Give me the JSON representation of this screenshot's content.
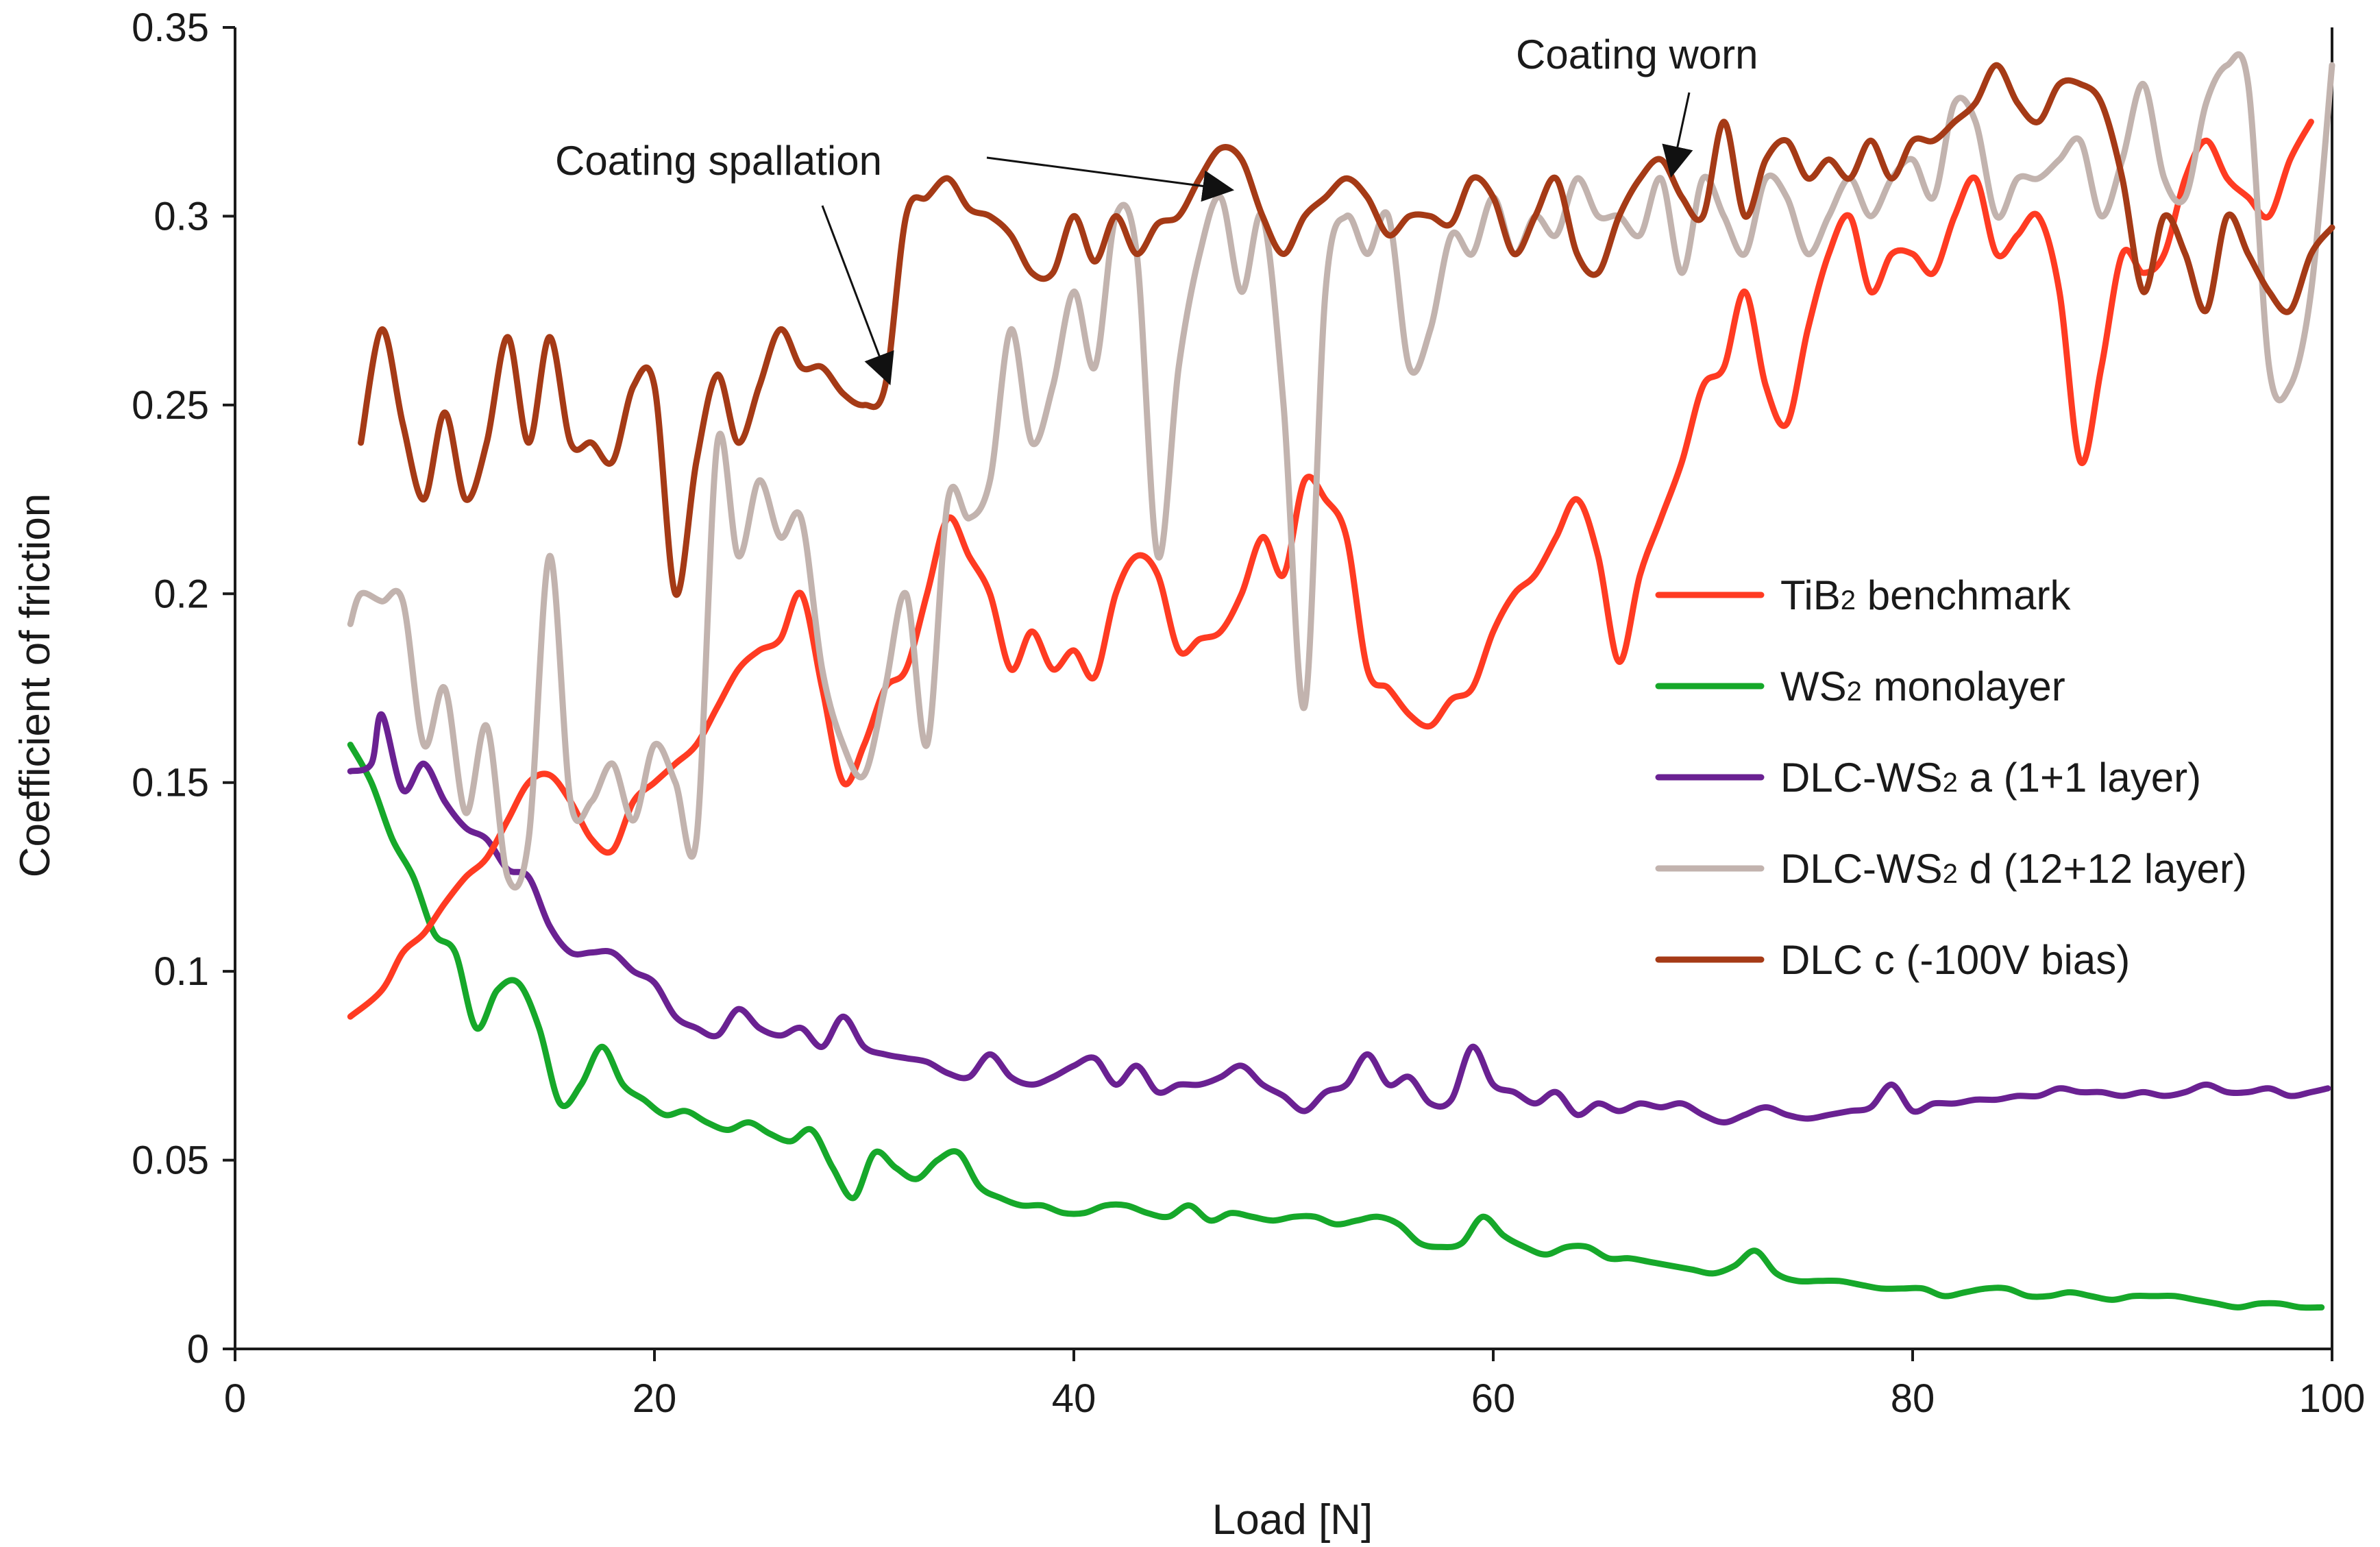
{
  "chart_data": {
    "type": "line",
    "title": "",
    "xlabel": "Load [N]",
    "ylabel": "Coefficient of friction",
    "xlim": [
      0,
      100
    ],
    "ylim": [
      0,
      0.35
    ],
    "xticks": [
      0,
      20,
      40,
      60,
      80,
      100
    ],
    "yticks": [
      0,
      0.05,
      0.1,
      0.15,
      0.2,
      0.25,
      0.3,
      0.35
    ],
    "xtick_labels": [
      "0",
      "20",
      "40",
      "60",
      "80",
      "100"
    ],
    "ytick_labels": [
      "0",
      "0.05",
      "0.1",
      "0.15",
      "0.2",
      "0.25",
      "0.3",
      "0.35"
    ],
    "grid": false,
    "legend_position": "right",
    "series": [
      {
        "name": "TiB2 benchmark",
        "label_main": "TiB",
        "label_sub": "2",
        "label_rest": " benchmark",
        "color": "#ff3b22",
        "x": [
          5.5,
          7,
          8,
          9,
          10,
          11,
          12,
          13,
          14,
          15,
          16,
          17,
          18,
          19,
          20,
          21,
          22,
          23,
          24,
          25,
          26,
          27,
          28,
          29,
          30,
          31,
          32,
          33,
          34,
          35,
          36,
          37,
          38,
          39,
          40,
          41,
          42,
          43,
          44,
          45,
          46,
          47,
          48,
          49,
          50,
          51,
          52,
          53,
          54,
          55,
          56,
          57,
          58,
          59,
          60,
          61,
          62,
          63,
          64,
          65,
          66,
          67,
          68,
          69,
          70,
          71,
          72,
          73,
          74,
          75,
          76,
          77,
          78,
          79,
          80,
          81,
          82,
          83,
          84,
          85,
          86,
          87,
          88,
          89,
          90,
          91,
          92,
          93,
          94,
          95,
          96,
          97,
          98,
          99
        ],
        "y": [
          0.088,
          0.095,
          0.105,
          0.11,
          0.118,
          0.125,
          0.13,
          0.14,
          0.15,
          0.152,
          0.145,
          0.135,
          0.132,
          0.145,
          0.15,
          0.155,
          0.16,
          0.17,
          0.18,
          0.185,
          0.188,
          0.2,
          0.175,
          0.15,
          0.16,
          0.175,
          0.18,
          0.2,
          0.22,
          0.21,
          0.2,
          0.18,
          0.19,
          0.18,
          0.185,
          0.178,
          0.2,
          0.21,
          0.205,
          0.185,
          0.188,
          0.19,
          0.2,
          0.215,
          0.205,
          0.23,
          0.225,
          0.215,
          0.18,
          0.175,
          0.168,
          0.165,
          0.172,
          0.175,
          0.19,
          0.2,
          0.205,
          0.215,
          0.225,
          0.21,
          0.182,
          0.205,
          0.22,
          0.235,
          0.255,
          0.26,
          0.28,
          0.255,
          0.245,
          0.27,
          0.29,
          0.3,
          0.28,
          0.29,
          0.29,
          0.285,
          0.3,
          0.31,
          0.29,
          0.295,
          0.3,
          0.28,
          0.235,
          0.26,
          0.29,
          0.285,
          0.29,
          0.31,
          0.32,
          0.31,
          0.305,
          0.3,
          0.315,
          0.325
        ]
      },
      {
        "name": "WS2 monolayer",
        "label_main": "WS",
        "label_sub": "2",
        "label_rest": " monolayer",
        "color": "#16a82a",
        "x": [
          5.5,
          6.5,
          7.5,
          8.5,
          9.5,
          10.5,
          11.5,
          12.5,
          13.5,
          14.5,
          15.5,
          16.5,
          17.5,
          18.5,
          19.5,
          20.5,
          21.5,
          22.5,
          23.5,
          24.5,
          25.5,
          26.5,
          27.5,
          28.5,
          29.5,
          30.5,
          31.5,
          32.5,
          33.5,
          34.5,
          35.5,
          36.5,
          37.5,
          38.5,
          39.5,
          40.5,
          41.5,
          42.5,
          43.5,
          44.5,
          45.5,
          46.5,
          47.5,
          48.5,
          49.5,
          50.5,
          51.5,
          52.5,
          53.5,
          54.5,
          55.5,
          56.5,
          57.5,
          58.5,
          59.5,
          60.5,
          61.5,
          62.5,
          63.5,
          64.5,
          65.5,
          66.5,
          67.5,
          68.5,
          69.5,
          70.5,
          71.5,
          72.5,
          73.5,
          74.5,
          75.5,
          76.5,
          77.5,
          78.5,
          79.5,
          80.5,
          81.5,
          82.5,
          83.5,
          84.5,
          85.5,
          86.5,
          87.5,
          88.5,
          89.5,
          90.5,
          91.5,
          92.5,
          93.5,
          94.5,
          95.5,
          96.5,
          97.5,
          98.5,
          99.5
        ],
        "y": [
          0.16,
          0.15,
          0.135,
          0.125,
          0.11,
          0.105,
          0.085,
          0.095,
          0.097,
          0.085,
          0.065,
          0.07,
          0.08,
          0.07,
          0.066,
          0.062,
          0.063,
          0.06,
          0.058,
          0.06,
          0.057,
          0.055,
          0.058,
          0.048,
          0.04,
          0.052,
          0.048,
          0.045,
          0.05,
          0.052,
          0.043,
          0.04,
          0.038,
          0.038,
          0.036,
          0.036,
          0.038,
          0.038,
          0.036,
          0.035,
          0.038,
          0.034,
          0.036,
          0.035,
          0.034,
          0.035,
          0.035,
          0.033,
          0.034,
          0.035,
          0.033,
          0.028,
          0.027,
          0.028,
          0.035,
          0.03,
          0.027,
          0.025,
          0.027,
          0.027,
          0.024,
          0.024,
          0.023,
          0.022,
          0.021,
          0.02,
          0.022,
          0.026,
          0.02,
          0.018,
          0.018,
          0.018,
          0.017,
          0.016,
          0.016,
          0.016,
          0.014,
          0.015,
          0.016,
          0.016,
          0.014,
          0.014,
          0.015,
          0.014,
          0.013,
          0.014,
          0.014,
          0.014,
          0.013,
          0.012,
          0.011,
          0.012,
          0.012,
          0.011,
          0.011
        ]
      },
      {
        "name": "DLC-WS2 a (1+1 layer)",
        "label_main": "DLC-WS",
        "label_sub": "2",
        "label_rest": " a (1+1 layer)",
        "color": "#6a2192",
        "x": [
          5.5,
          6.5,
          7,
          8,
          9,
          10,
          11,
          12,
          13,
          14,
          15,
          16,
          17,
          18,
          19,
          20,
          21,
          22,
          23,
          24,
          25,
          26,
          27,
          28,
          29,
          30,
          31,
          32,
          33,
          34,
          35,
          36,
          37,
          38,
          39,
          40,
          41,
          42,
          43,
          44,
          45,
          46,
          47,
          48,
          49,
          50,
          51,
          52,
          53,
          54,
          55,
          56,
          57,
          58,
          59,
          60,
          61,
          62,
          63,
          64,
          65,
          66,
          67,
          68,
          69,
          70,
          71,
          72,
          73,
          74,
          75,
          76,
          77,
          78,
          79,
          80,
          81,
          82,
          83,
          84,
          85,
          86,
          87,
          88,
          89,
          90,
          91,
          92,
          93,
          94,
          95,
          96,
          97,
          98,
          99,
          99.8
        ],
        "y": [
          0.153,
          0.155,
          0.168,
          0.148,
          0.155,
          0.145,
          0.138,
          0.135,
          0.127,
          0.125,
          0.112,
          0.105,
          0.105,
          0.105,
          0.1,
          0.097,
          0.088,
          0.085,
          0.083,
          0.09,
          0.085,
          0.083,
          0.085,
          0.08,
          0.088,
          0.08,
          0.078,
          0.077,
          0.076,
          0.073,
          0.072,
          0.078,
          0.072,
          0.07,
          0.072,
          0.075,
          0.077,
          0.07,
          0.075,
          0.068,
          0.07,
          0.07,
          0.072,
          0.075,
          0.07,
          0.067,
          0.063,
          0.068,
          0.07,
          0.078,
          0.07,
          0.072,
          0.065,
          0.066,
          0.08,
          0.07,
          0.068,
          0.065,
          0.068,
          0.062,
          0.065,
          0.063,
          0.065,
          0.064,
          0.065,
          0.062,
          0.06,
          0.062,
          0.064,
          0.062,
          0.061,
          0.062,
          0.063,
          0.064,
          0.07,
          0.063,
          0.065,
          0.065,
          0.066,
          0.066,
          0.067,
          0.067,
          0.069,
          0.068,
          0.068,
          0.067,
          0.068,
          0.067,
          0.068,
          0.07,
          0.068,
          0.068,
          0.069,
          0.067,
          0.068,
          0.069
        ]
      },
      {
        "name": "DLC-WS2 d (12+12 layer)",
        "label_main": "DLC-WS",
        "label_sub": "2",
        "label_rest": " d (12+12 layer)",
        "color": "#c2b3ae",
        "x": [
          5.5,
          6,
          7,
          8,
          9,
          10,
          11,
          12,
          13,
          14,
          15,
          16,
          17,
          18,
          19,
          20,
          21,
          22,
          23,
          24,
          25,
          26,
          27,
          28,
          29,
          30,
          31,
          32,
          33,
          34,
          35,
          36,
          37,
          38,
          39,
          40,
          41,
          42,
          43,
          44,
          45,
          46,
          47,
          48,
          49,
          50,
          51,
          52,
          53,
          54,
          55,
          56,
          57,
          58,
          59,
          60,
          61,
          62,
          63,
          64,
          65,
          66,
          67,
          68,
          69,
          70,
          71,
          72,
          73,
          74,
          75,
          76,
          77,
          78,
          79,
          80,
          81,
          82,
          83,
          84,
          85,
          86,
          87,
          88,
          89,
          90,
          91,
          92,
          93,
          94,
          95,
          96,
          97,
          98,
          99,
          100
        ],
        "y": [
          0.192,
          0.2,
          0.198,
          0.198,
          0.16,
          0.175,
          0.142,
          0.165,
          0.125,
          0.135,
          0.21,
          0.145,
          0.145,
          0.155,
          0.14,
          0.16,
          0.15,
          0.135,
          0.24,
          0.21,
          0.23,
          0.215,
          0.22,
          0.18,
          0.16,
          0.152,
          0.175,
          0.2,
          0.16,
          0.225,
          0.22,
          0.23,
          0.27,
          0.24,
          0.255,
          0.28,
          0.26,
          0.3,
          0.29,
          0.21,
          0.26,
          0.29,
          0.305,
          0.28,
          0.3,
          0.25,
          0.17,
          0.28,
          0.3,
          0.29,
          0.3,
          0.26,
          0.27,
          0.295,
          0.29,
          0.305,
          0.29,
          0.3,
          0.295,
          0.31,
          0.3,
          0.3,
          0.295,
          0.31,
          0.285,
          0.31,
          0.3,
          0.29,
          0.31,
          0.305,
          0.29,
          0.3,
          0.31,
          0.3,
          0.31,
          0.315,
          0.305,
          0.33,
          0.325,
          0.3,
          0.31,
          0.31,
          0.315,
          0.32,
          0.3,
          0.315,
          0.335,
          0.31,
          0.305,
          0.33,
          0.34,
          0.335,
          0.26,
          0.255,
          0.28,
          0.34
        ]
      },
      {
        "name": "DLC c (-100V bias)",
        "label_main": "DLC c (-100V bias)",
        "label_sub": "",
        "label_rest": "",
        "color": "#a53a16",
        "x": [
          6,
          7,
          8,
          9,
          10,
          11,
          12,
          13,
          14,
          15,
          16,
          17,
          18,
          19,
          20,
          21,
          22,
          23,
          24,
          25,
          26,
          27,
          28,
          29,
          30,
          31,
          32,
          33,
          34,
          35,
          36,
          37,
          38,
          39,
          40,
          41,
          42,
          43,
          44,
          45,
          46,
          47,
          48,
          49,
          50,
          51,
          52,
          53,
          54,
          55,
          56,
          57,
          58,
          59,
          60,
          61,
          62,
          63,
          64,
          65,
          66,
          67,
          68,
          69,
          70,
          71,
          72,
          73,
          74,
          75,
          76,
          77,
          78,
          79,
          80,
          81,
          82,
          83,
          84,
          85,
          86,
          87,
          88,
          89,
          90,
          91,
          92,
          93,
          94,
          95,
          96,
          97,
          98,
          99,
          100
        ],
        "y": [
          0.24,
          0.27,
          0.245,
          0.225,
          0.248,
          0.225,
          0.24,
          0.268,
          0.24,
          0.268,
          0.24,
          0.24,
          0.235,
          0.255,
          0.255,
          0.2,
          0.235,
          0.258,
          0.24,
          0.255,
          0.27,
          0.26,
          0.26,
          0.253,
          0.25,
          0.255,
          0.3,
          0.305,
          0.31,
          0.302,
          0.3,
          0.295,
          0.285,
          0.285,
          0.3,
          0.288,
          0.3,
          0.29,
          0.298,
          0.3,
          0.31,
          0.318,
          0.315,
          0.3,
          0.29,
          0.3,
          0.305,
          0.31,
          0.305,
          0.295,
          0.3,
          0.3,
          0.298,
          0.31,
          0.305,
          0.29,
          0.3,
          0.31,
          0.29,
          0.285,
          0.3,
          0.31,
          0.315,
          0.305,
          0.3,
          0.325,
          0.3,
          0.315,
          0.32,
          0.31,
          0.315,
          0.31,
          0.32,
          0.31,
          0.32,
          0.32,
          0.325,
          0.33,
          0.34,
          0.33,
          0.325,
          0.335,
          0.335,
          0.33,
          0.31,
          0.28,
          0.3,
          0.29,
          0.275,
          0.3,
          0.29,
          0.28,
          0.275,
          0.29,
          0.297
        ]
      }
    ],
    "annotations": [
      {
        "text": "Coating spallation",
        "target_x": 31.2,
        "target_y": 0.256
      },
      {
        "text": "Coating spallation",
        "target_x": 47.5,
        "target_y": 0.307
      },
      {
        "text": "Coating worn",
        "target_x": 68.5,
        "target_y": 0.311
      }
    ]
  },
  "annotation_labels": {
    "spallation": "Coating spallation",
    "worn": "Coating worn"
  }
}
